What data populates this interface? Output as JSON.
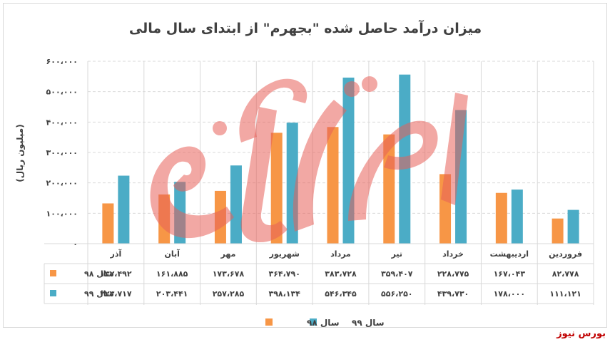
{
  "chart_data": {
    "type": "bar",
    "title": "میزان درآمد حاصل شده \"بجهرم\" از ابتدای سال مالی",
    "ylabel": "(میلیون ریال)",
    "ylim": [
      0,
      600000
    ],
    "yticks": [
      0,
      100000,
      200000,
      300000,
      400000,
      500000,
      600000
    ],
    "ytick_labels": [
      "۰",
      "۱۰۰،۰۰۰",
      "۲۰۰،۰۰۰",
      "۳۰۰،۰۰۰",
      "۴۰۰،۰۰۰",
      "۵۰۰،۰۰۰",
      "۶۰۰،۰۰۰"
    ],
    "grid": true,
    "legend_position": "bottom",
    "categories": [
      "فروردین",
      "اردیبهشت",
      "خرداد",
      "تیر",
      "مرداد",
      "شهریور",
      "مهر",
      "آبان",
      "آذر"
    ],
    "series": [
      {
        "name": "سال ۹۸",
        "color": "#f79646",
        "values": [
          82778,
          167043,
          228775,
          359407,
          383728,
          364790,
          173678,
          161885,
          132492
        ],
        "value_labels": [
          "۸۲،۷۷۸",
          "۱۶۷،۰۴۳",
          "۲۲۸،۷۷۵",
          "۳۵۹،۴۰۷",
          "۳۸۳،۷۲۸",
          "۳۶۴،۷۹۰",
          "۱۷۳،۶۷۸",
          "۱۶۱،۸۸۵",
          "۱۳۲،۴۹۲"
        ]
      },
      {
        "name": "سال ۹۹",
        "color": "#4bacc6",
        "values": [
          111121,
          178000,
          439730,
          556250,
          546345,
          398134,
          257285,
          203441,
          223717
        ],
        "value_labels": [
          "۱۱۱،۱۲۱",
          "۱۷۸،۰۰۰",
          "۴۳۹،۷۳۰",
          "۵۵۶،۲۵۰",
          "۵۴۶،۳۴۵",
          "۳۹۸،۱۳۴",
          "۲۵۷،۲۸۵",
          "۲۰۳،۴۴۱",
          "۲۲۳،۷۱۷"
        ]
      }
    ]
  },
  "source": "بورس نیوز"
}
